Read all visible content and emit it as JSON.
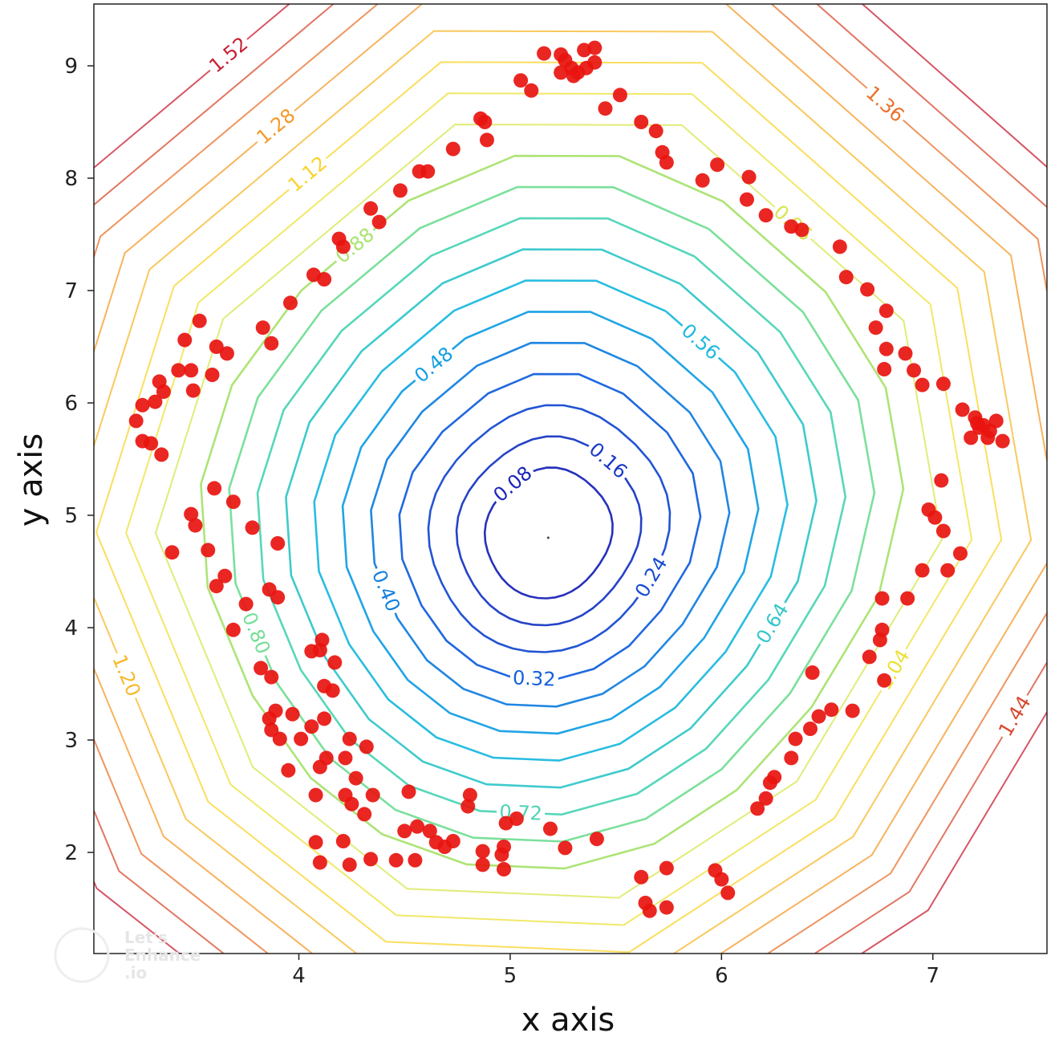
{
  "chart_data": {
    "type": "contour+scatter",
    "xlabel": "x axis",
    "ylabel": "y axis",
    "xlim": [
      3.03,
      7.54
    ],
    "ylim": [
      1.1,
      9.55
    ],
    "xticks": [
      "4",
      "5",
      "6",
      "7"
    ],
    "xtick_values": [
      4,
      5,
      6,
      7
    ],
    "yticks": [
      "2",
      "3",
      "4",
      "5",
      "6",
      "7",
      "8",
      "9"
    ],
    "ytick_values": [
      2,
      3,
      4,
      5,
      6,
      7,
      8,
      9
    ],
    "grid": false,
    "contour_center": [
      5.18,
      4.8
    ],
    "contour_levels": [
      0.08,
      0.16,
      0.24,
      0.32,
      0.4,
      0.48,
      0.56,
      0.64,
      0.72,
      0.8,
      0.88,
      0.96,
      1.04,
      1.12,
      1.2,
      1.28,
      1.36,
      1.44,
      1.52
    ],
    "contour_labels": [
      "0.08",
      "0.16",
      "0.24",
      "0.32",
      "0.40",
      "0.48",
      "0.56",
      "0.64",
      "0.72",
      "0.80",
      "0.88",
      "0.96",
      "1.04",
      "1.12",
      "1.20",
      "1.28",
      "1.36",
      "1.44",
      "1.52"
    ],
    "colormap": "jet",
    "point_color": "#e8130f",
    "points": [
      [
        5.16,
        9.11
      ],
      [
        5.24,
        9.1
      ],
      [
        5.26,
        9.05
      ],
      [
        5.29,
        8.98
      ],
      [
        5.32,
        8.94
      ],
      [
        5.36,
        8.98
      ],
      [
        5.4,
        9.03
      ],
      [
        5.35,
        9.14
      ],
      [
        5.4,
        9.16
      ],
      [
        5.3,
        8.91
      ],
      [
        5.24,
        8.94
      ],
      [
        5.05,
        8.87
      ],
      [
        5.1,
        8.78
      ],
      [
        5.45,
        8.62
      ],
      [
        5.52,
        8.74
      ],
      [
        5.62,
        8.5
      ],
      [
        5.69,
        8.42
      ],
      [
        5.72,
        8.23
      ],
      [
        5.74,
        8.14
      ],
      [
        5.91,
        7.98
      ],
      [
        5.98,
        8.12
      ],
      [
        6.13,
        8.01
      ],
      [
        6.12,
        7.81
      ],
      [
        6.21,
        7.67
      ],
      [
        6.33,
        7.57
      ],
      [
        6.38,
        7.54
      ],
      [
        6.56,
        7.39
      ],
      [
        6.59,
        7.12
      ],
      [
        6.69,
        7.01
      ],
      [
        6.78,
        6.82
      ],
      [
        6.73,
        6.67
      ],
      [
        6.78,
        6.48
      ],
      [
        6.87,
        6.44
      ],
      [
        6.77,
        6.3
      ],
      [
        6.91,
        6.29
      ],
      [
        6.95,
        6.16
      ],
      [
        7.05,
        6.17
      ],
      [
        7.14,
        5.94
      ],
      [
        7.2,
        5.87
      ],
      [
        7.24,
        5.8
      ],
      [
        7.3,
        5.84
      ],
      [
        7.33,
        5.66
      ],
      [
        7.26,
        5.69
      ],
      [
        7.18,
        5.69
      ],
      [
        7.22,
        5.78
      ],
      [
        7.27,
        5.75
      ],
      [
        7.21,
        5.82
      ],
      [
        7.04,
        5.31
      ],
      [
        6.98,
        5.05
      ],
      [
        7.01,
        4.98
      ],
      [
        7.05,
        4.86
      ],
      [
        7.13,
        4.66
      ],
      [
        7.07,
        4.51
      ],
      [
        6.95,
        4.51
      ],
      [
        6.88,
        4.26
      ],
      [
        6.76,
        4.26
      ],
      [
        6.76,
        3.98
      ],
      [
        6.75,
        3.89
      ],
      [
        6.7,
        3.74
      ],
      [
        6.77,
        3.53
      ],
      [
        6.62,
        3.26
      ],
      [
        6.52,
        3.27
      ],
      [
        6.46,
        3.21
      ],
      [
        6.42,
        3.1
      ],
      [
        6.43,
        3.6
      ],
      [
        6.35,
        3.01
      ],
      [
        6.33,
        2.84
      ],
      [
        6.25,
        2.67
      ],
      [
        6.23,
        2.62
      ],
      [
        6.21,
        2.48
      ],
      [
        6.17,
        2.39
      ],
      [
        5.97,
        1.84
      ],
      [
        6.0,
        1.76
      ],
      [
        6.03,
        1.64
      ],
      [
        5.74,
        1.86
      ],
      [
        5.62,
        1.78
      ],
      [
        5.64,
        1.55
      ],
      [
        5.66,
        1.48
      ],
      [
        5.74,
        1.51
      ],
      [
        5.41,
        2.12
      ],
      [
        5.26,
        2.04
      ],
      [
        5.19,
        2.21
      ],
      [
        5.03,
        2.3
      ],
      [
        4.98,
        2.26
      ],
      [
        4.97,
        2.05
      ],
      [
        4.96,
        1.98
      ],
      [
        4.97,
        1.85
      ],
      [
        4.87,
        2.01
      ],
      [
        4.87,
        1.89
      ],
      [
        4.81,
        2.51
      ],
      [
        4.8,
        2.41
      ],
      [
        4.73,
        2.1
      ],
      [
        4.69,
        2.05
      ],
      [
        4.65,
        2.09
      ],
      [
        4.62,
        2.19
      ],
      [
        4.56,
        2.23
      ],
      [
        4.5,
        2.19
      ],
      [
        4.55,
        1.93
      ],
      [
        4.46,
        1.93
      ],
      [
        4.52,
        2.54
      ],
      [
        4.34,
        1.94
      ],
      [
        4.24,
        1.89
      ],
      [
        4.21,
        2.1
      ],
      [
        4.1,
        1.91
      ],
      [
        4.08,
        2.09
      ],
      [
        4.35,
        2.51
      ],
      [
        4.31,
        2.34
      ],
      [
        4.25,
        2.43
      ],
      [
        4.22,
        2.51
      ],
      [
        4.27,
        2.66
      ],
      [
        4.22,
        2.84
      ],
      [
        4.24,
        3.01
      ],
      [
        4.32,
        2.94
      ],
      [
        4.13,
        2.84
      ],
      [
        4.1,
        2.76
      ],
      [
        4.08,
        2.51
      ],
      [
        3.95,
        2.73
      ],
      [
        3.91,
        3.01
      ],
      [
        3.87,
        3.09
      ],
      [
        3.86,
        3.19
      ],
      [
        3.89,
        3.26
      ],
      [
        3.97,
        3.23
      ],
      [
        4.01,
        3.01
      ],
      [
        4.06,
        3.12
      ],
      [
        4.12,
        3.19
      ],
      [
        4.16,
        3.44
      ],
      [
        4.12,
        3.48
      ],
      [
        4.17,
        3.69
      ],
      [
        4.1,
        3.8
      ],
      [
        4.06,
        3.79
      ],
      [
        4.11,
        3.89
      ],
      [
        3.87,
        3.56
      ],
      [
        3.82,
        3.64
      ],
      [
        3.69,
        3.98
      ],
      [
        3.75,
        4.21
      ],
      [
        3.9,
        4.27
      ],
      [
        3.86,
        4.34
      ],
      [
        3.65,
        4.46
      ],
      [
        3.61,
        4.37
      ],
      [
        3.57,
        4.69
      ],
      [
        3.4,
        4.67
      ],
      [
        3.51,
        4.91
      ],
      [
        3.49,
        5.01
      ],
      [
        3.69,
        5.12
      ],
      [
        3.78,
        4.89
      ],
      [
        3.9,
        4.75
      ],
      [
        3.6,
        5.24
      ],
      [
        3.26,
        5.66
      ],
      [
        3.3,
        5.64
      ],
      [
        3.35,
        5.54
      ],
      [
        3.23,
        5.84
      ],
      [
        3.26,
        5.98
      ],
      [
        3.32,
        6.01
      ],
      [
        3.36,
        6.1
      ],
      [
        3.34,
        6.19
      ],
      [
        3.43,
        6.29
      ],
      [
        3.49,
        6.29
      ],
      [
        3.5,
        6.11
      ],
      [
        3.59,
        6.25
      ],
      [
        3.66,
        6.44
      ],
      [
        3.61,
        6.5
      ],
      [
        3.46,
        6.56
      ],
      [
        3.53,
        6.73
      ],
      [
        3.87,
        6.53
      ],
      [
        3.83,
        6.67
      ],
      [
        3.96,
        6.89
      ],
      [
        4.07,
        7.14
      ],
      [
        4.12,
        7.1
      ],
      [
        4.19,
        7.46
      ],
      [
        4.21,
        7.39
      ],
      [
        4.34,
        7.73
      ],
      [
        4.38,
        7.61
      ],
      [
        4.48,
        7.89
      ],
      [
        4.57,
        8.06
      ],
      [
        4.61,
        8.06
      ],
      [
        4.73,
        8.26
      ],
      [
        4.89,
        8.34
      ],
      [
        4.86,
        8.53
      ],
      [
        4.88,
        8.5
      ]
    ]
  },
  "watermark": "Let's Enhance .io"
}
